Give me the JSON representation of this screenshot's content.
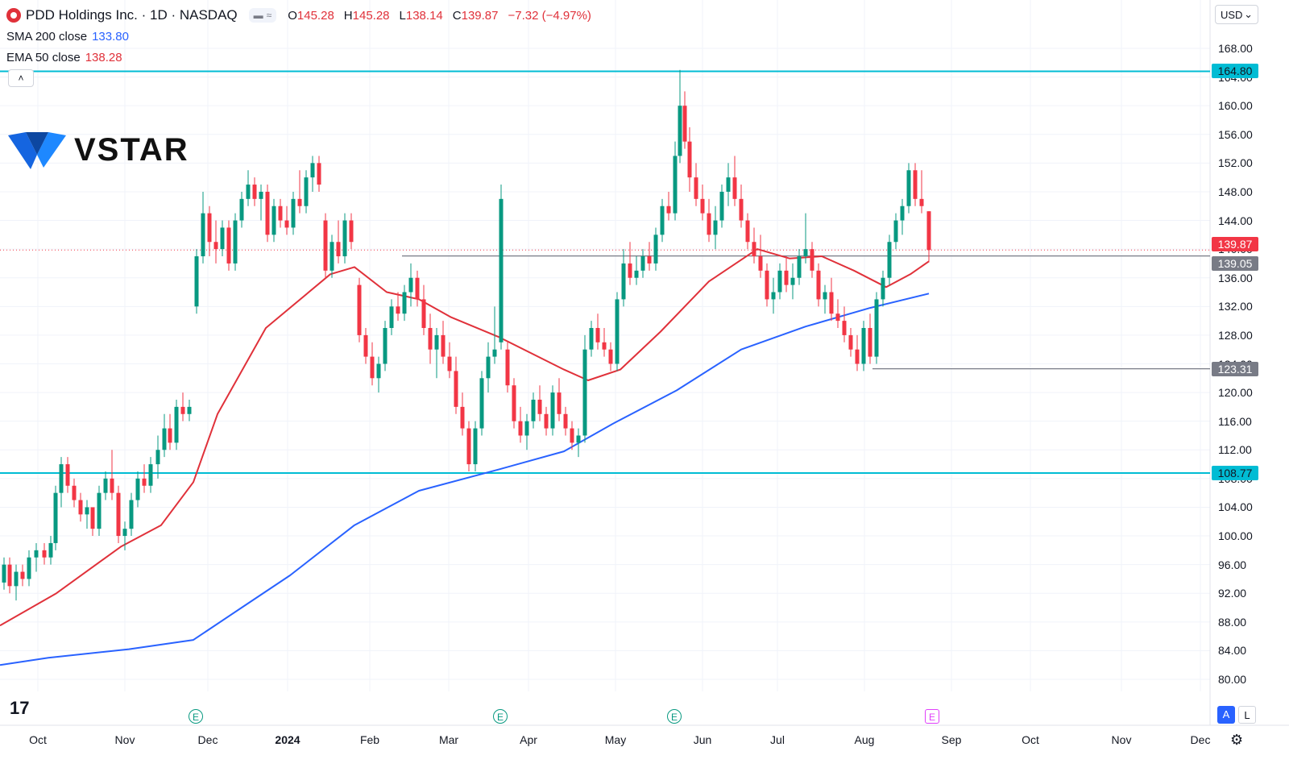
{
  "header": {
    "title": "PDD Holdings Inc. · 1D · NASDAQ",
    "ohlc": [
      {
        "label": "O",
        "value": "145.28"
      },
      {
        "label": "H",
        "value": "145.28"
      },
      {
        "label": "L",
        "value": "138.14"
      },
      {
        "label": "C",
        "value": "139.87"
      }
    ],
    "change": "−7.32 (−4.97%)",
    "sma_label": "SMA 200 close",
    "sma_value": "133.80",
    "ema_label": "EMA 50 close",
    "ema_value": "138.28",
    "currency": "USD",
    "currency_chevron": "⌄",
    "collapse_glyph": "˄"
  },
  "watermark": "VSTAR",
  "tradingview_mark": "17",
  "colors": {
    "up": "#089981",
    "down": "#f23645",
    "sma": "#2962ff",
    "ema": "#e0313a",
    "level": "#00bcd4",
    "gray_level": "#787b86"
  },
  "buttons": {
    "auto": "A",
    "log": "L",
    "settings_icon": "⚙"
  },
  "earnings_marker": "E",
  "chart_data": {
    "type": "candlestick",
    "x_axis_labels": [
      "Oct",
      "Nov",
      "Dec",
      "2024",
      "Feb",
      "Mar",
      "Apr",
      "May",
      "Jun",
      "Jul",
      "Aug",
      "Sep",
      "Oct",
      "Nov",
      "Dec"
    ],
    "y_axis_labels": [
      "168.00",
      "164.00",
      "160.00",
      "156.00",
      "152.00",
      "148.00",
      "144.00",
      "140.00",
      "136.00",
      "132.00",
      "128.00",
      "124.00",
      "120.00",
      "116.00",
      "112.00",
      "108.00",
      "104.00",
      "100.00",
      "96.00",
      "92.00",
      "88.00",
      "84.00",
      "80.00"
    ],
    "ylim": [
      77,
      170
    ],
    "price_labels": [
      {
        "value": 164.8,
        "text": "164.80",
        "style": "cyan"
      },
      {
        "value": 139.87,
        "text": "139.87",
        "style": "red"
      },
      {
        "value": 139.05,
        "text": "139.05",
        "style": "gray"
      },
      {
        "value": 123.31,
        "text": "123.31",
        "style": "gray"
      },
      {
        "value": 108.77,
        "text": "108.77",
        "style": "cyan"
      }
    ],
    "horizontal_levels": [
      {
        "value": 164.8,
        "color": "#00bcd4",
        "from": "full"
      },
      {
        "value": 108.77,
        "color": "#00bcd4",
        "from": "full"
      },
      {
        "value": 139.05,
        "color": "#787b86",
        "from": "2024-02-15"
      },
      {
        "value": 123.31,
        "color": "#787b86",
        "from": "2024-08-05"
      }
    ],
    "last_price": 139.87,
    "sma200_anchor_points": [
      [
        0,
        82.0
      ],
      [
        60,
        83.0
      ],
      [
        160,
        84.2
      ],
      [
        240,
        85.5
      ],
      [
        300,
        90.0
      ],
      [
        360,
        94.5
      ],
      [
        440,
        101.5
      ],
      [
        520,
        106.3
      ],
      [
        620,
        109.3
      ],
      [
        700,
        111.8
      ],
      [
        760,
        115.6
      ],
      [
        840,
        120.3
      ],
      [
        920,
        126.0
      ],
      [
        1000,
        129.2
      ],
      [
        1080,
        131.8
      ],
      [
        1153,
        133.8
      ]
    ],
    "ema50_anchor_points": [
      [
        0,
        87.5
      ],
      [
        70,
        92.0
      ],
      [
        150,
        98.5
      ],
      [
        200,
        101.5
      ],
      [
        240,
        107.5
      ],
      [
        270,
        117.0
      ],
      [
        330,
        129.0
      ],
      [
        410,
        136.5
      ],
      [
        440,
        137.5
      ],
      [
        480,
        134.0
      ],
      [
        520,
        133.0
      ],
      [
        560,
        130.5
      ],
      [
        620,
        127.7
      ],
      [
        700,
        123.2
      ],
      [
        730,
        121.7
      ],
      [
        770,
        123.2
      ],
      [
        820,
        128.5
      ],
      [
        880,
        135.5
      ],
      [
        940,
        140.0
      ],
      [
        980,
        138.7
      ],
      [
        1020,
        139.0
      ],
      [
        1060,
        137.0
      ],
      [
        1100,
        134.7
      ],
      [
        1130,
        136.5
      ],
      [
        1153,
        138.3
      ]
    ],
    "candles": [
      [
        5,
        93.5,
        97,
        92.5,
        96
      ],
      [
        12,
        96,
        97,
        92,
        93
      ],
      [
        20,
        93,
        96,
        91,
        95
      ],
      [
        28,
        95,
        96,
        93,
        94
      ],
      [
        36,
        94,
        98,
        93,
        97
      ],
      [
        45,
        97,
        99,
        95,
        98
      ],
      [
        55,
        98,
        99,
        96,
        97
      ],
      [
        63,
        97,
        100,
        96,
        99
      ],
      [
        69,
        99,
        107,
        98,
        106
      ],
      [
        76,
        106,
        111,
        104,
        110
      ],
      [
        84,
        110,
        111,
        106,
        107
      ],
      [
        92,
        107,
        108,
        104,
        105
      ],
      [
        100,
        105,
        106,
        102,
        103
      ],
      [
        108,
        103,
        105,
        101,
        104
      ],
      [
        115,
        104,
        104,
        100,
        101
      ],
      [
        123,
        101,
        107,
        100,
        106
      ],
      [
        131,
        106,
        109,
        105,
        108
      ],
      [
        139,
        108,
        112,
        105,
        106
      ],
      [
        147,
        106,
        107,
        99,
        100
      ],
      [
        155,
        100,
        102,
        98,
        101
      ],
      [
        163,
        101,
        106,
        100,
        105
      ],
      [
        171,
        105,
        109,
        104,
        108
      ],
      [
        179,
        108,
        110,
        106,
        107
      ],
      [
        187,
        107,
        111,
        106,
        110
      ],
      [
        196,
        110,
        114,
        108,
        112
      ],
      [
        204,
        112,
        117,
        111,
        115
      ],
      [
        211,
        115,
        117,
        112,
        113
      ],
      [
        219,
        113,
        119,
        112,
        118
      ],
      [
        227,
        118,
        120,
        116,
        117
      ],
      [
        235,
        117,
        119,
        116,
        118
      ],
      [
        244,
        132,
        140,
        131,
        139
      ],
      [
        252,
        139,
        148,
        138,
        145
      ],
      [
        260,
        145,
        146,
        139,
        141
      ],
      [
        268,
        141,
        144,
        138,
        140
      ],
      [
        276,
        140,
        144,
        139,
        143
      ],
      [
        284,
        143,
        144,
        137,
        138
      ],
      [
        292,
        138,
        145,
        137,
        144
      ],
      [
        300,
        144,
        148,
        143,
        147
      ],
      [
        308,
        147,
        151,
        146,
        149
      ],
      [
        316,
        149,
        150,
        146,
        147
      ],
      [
        324,
        147,
        149,
        144,
        148
      ],
      [
        332,
        148,
        149,
        141,
        142
      ],
      [
        340,
        142,
        147,
        141,
        146
      ],
      [
        348,
        146,
        147,
        143,
        144
      ],
      [
        356,
        144,
        146,
        142,
        143
      ],
      [
        364,
        143,
        148,
        142,
        147
      ],
      [
        372,
        147,
        151,
        145,
        146
      ],
      [
        380,
        146,
        151,
        145,
        150
      ],
      [
        388,
        150,
        153,
        148,
        152
      ],
      [
        396,
        152,
        153,
        148,
        149
      ],
      [
        404,
        144,
        145,
        136,
        137
      ],
      [
        412,
        137,
        142,
        136,
        141
      ],
      [
        420,
        141,
        144,
        138,
        139
      ],
      [
        428,
        139,
        145,
        138,
        144
      ],
      [
        436,
        144,
        145,
        140,
        141
      ],
      [
        446,
        135,
        136,
        127,
        128
      ],
      [
        454,
        128,
        129,
        124,
        125
      ],
      [
        462,
        125,
        127,
        121,
        122
      ],
      [
        470,
        122,
        125,
        120,
        124
      ],
      [
        478,
        124,
        130,
        123,
        129
      ],
      [
        486,
        129,
        133,
        128,
        132
      ],
      [
        494,
        132,
        134,
        130,
        131
      ],
      [
        502,
        131,
        135,
        130,
        134
      ],
      [
        510,
        134,
        138,
        132,
        136
      ],
      [
        518,
        136,
        137,
        132,
        133
      ],
      [
        526,
        133,
        135,
        128,
        129
      ],
      [
        534,
        129,
        131,
        124,
        126
      ],
      [
        542,
        126,
        129,
        122,
        128
      ],
      [
        550,
        128,
        130,
        124,
        125
      ],
      [
        558,
        125,
        127,
        122,
        123
      ],
      [
        566,
        123,
        125,
        117,
        118
      ],
      [
        574,
        118,
        120,
        114,
        115
      ],
      [
        582,
        115,
        116,
        109,
        110
      ],
      [
        590,
        110,
        116,
        109,
        115
      ],
      [
        598,
        115,
        123,
        114,
        122
      ],
      [
        606,
        122,
        127,
        120,
        125
      ],
      [
        614,
        125,
        132,
        124,
        126
      ],
      [
        622,
        127,
        149,
        126,
        147
      ],
      [
        630,
        126,
        127,
        120,
        121
      ],
      [
        638,
        121,
        122,
        115,
        116
      ],
      [
        646,
        116,
        118,
        113,
        114
      ],
      [
        654,
        114,
        117,
        112,
        116
      ],
      [
        662,
        116,
        120,
        115,
        119
      ],
      [
        670,
        119,
        121,
        116,
        117
      ],
      [
        678,
        117,
        118,
        114,
        115
      ],
      [
        686,
        115,
        121,
        114,
        120
      ],
      [
        694,
        120,
        122,
        116,
        117
      ],
      [
        702,
        117,
        118,
        114,
        115
      ],
      [
        710,
        115,
        116,
        112,
        113
      ],
      [
        718,
        113,
        115,
        111,
        114
      ],
      [
        726,
        114,
        128,
        113,
        126
      ],
      [
        734,
        126,
        130,
        125,
        129
      ],
      [
        742,
        129,
        131,
        126,
        127
      ],
      [
        750,
        127,
        129,
        125,
        126
      ],
      [
        758,
        126,
        127,
        123,
        124
      ],
      [
        766,
        124,
        134,
        123,
        133
      ],
      [
        774,
        133,
        140,
        132,
        138
      ],
      [
        782,
        138,
        141,
        135,
        136
      ],
      [
        790,
        136,
        139,
        135,
        137
      ],
      [
        798,
        137,
        140,
        136,
        139
      ],
      [
        806,
        139,
        141,
        137,
        138
      ],
      [
        814,
        138,
        143,
        137,
        142
      ],
      [
        822,
        142,
        147,
        141,
        146
      ],
      [
        830,
        146,
        148,
        144,
        145
      ],
      [
        838,
        145,
        155,
        144,
        153
      ],
      [
        844,
        153,
        165,
        152,
        160
      ],
      [
        850,
        160,
        162,
        154,
        155
      ],
      [
        856,
        155,
        157,
        148,
        150
      ],
      [
        864,
        150,
        152,
        146,
        147
      ],
      [
        872,
        147,
        149,
        144,
        145
      ],
      [
        880,
        145,
        147,
        141,
        142
      ],
      [
        888,
        142,
        146,
        140,
        144
      ],
      [
        896,
        144,
        149,
        143,
        148
      ],
      [
        904,
        148,
        152,
        146,
        150
      ],
      [
        912,
        150,
        153,
        146,
        147
      ],
      [
        920,
        147,
        149,
        143,
        144
      ],
      [
        928,
        144,
        145,
        140,
        141
      ],
      [
        936,
        141,
        143,
        138,
        139
      ],
      [
        944,
        139,
        142,
        136,
        137
      ],
      [
        952,
        137,
        138,
        132,
        133
      ],
      [
        960,
        133,
        136,
        131,
        134
      ],
      [
        968,
        134,
        138,
        133,
        137
      ],
      [
        976,
        137,
        139,
        134,
        135
      ],
      [
        984,
        135,
        138,
        133,
        136
      ],
      [
        992,
        136,
        140,
        135,
        139
      ],
      [
        1000,
        139,
        145,
        138,
        140
      ],
      [
        1008,
        140,
        141,
        136,
        137
      ],
      [
        1016,
        137,
        138,
        132,
        133
      ],
      [
        1024,
        133,
        135,
        131,
        134
      ],
      [
        1032,
        134,
        136,
        130,
        131
      ],
      [
        1040,
        131,
        133,
        129,
        130
      ],
      [
        1048,
        130,
        132,
        127,
        128
      ],
      [
        1056,
        128,
        129,
        125,
        126
      ],
      [
        1064,
        126,
        128,
        123,
        124
      ],
      [
        1072,
        124,
        130,
        123,
        129
      ],
      [
        1080,
        129,
        131,
        124,
        125
      ],
      [
        1088,
        125,
        134,
        124,
        133
      ],
      [
        1096,
        133,
        137,
        132,
        136
      ],
      [
        1104,
        136,
        142,
        135,
        141
      ],
      [
        1112,
        141,
        145,
        140,
        144
      ],
      [
        1120,
        144,
        147,
        142,
        146
      ],
      [
        1128,
        146,
        152,
        145,
        151
      ],
      [
        1136,
        151,
        152,
        146,
        147
      ],
      [
        1144,
        147,
        151,
        145,
        146
      ],
      [
        1153,
        145.28,
        145.28,
        138.14,
        139.87
      ]
    ]
  }
}
